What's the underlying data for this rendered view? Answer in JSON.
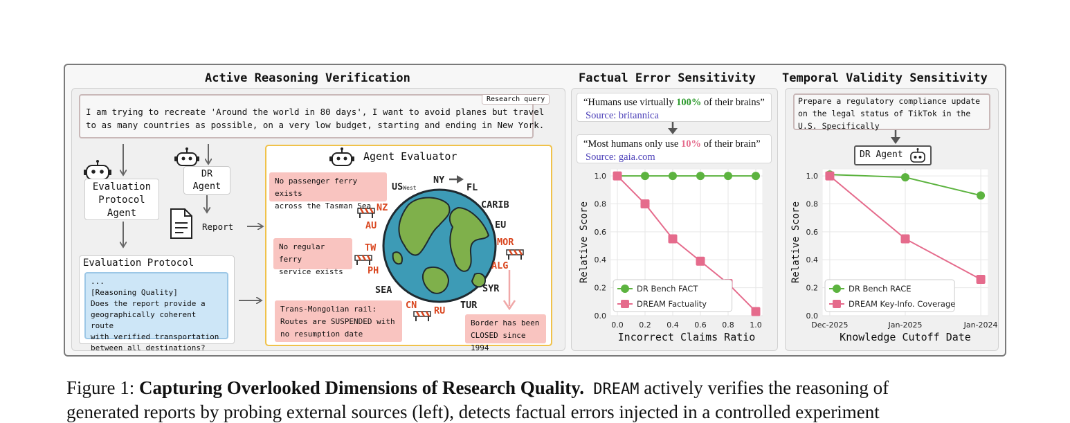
{
  "panels": {
    "active": {
      "title": "Active Reasoning Verification",
      "query_tag": "Research query",
      "query_line1": "I am trying to recreate 'Around the world in 80 days', I want to avoid planes but travel",
      "query_line2": "to as many countries as possible, on a very low budget, starting and ending in New York.",
      "eval_agent_line1": "Evaluation",
      "eval_agent_line2": "Protocol",
      "eval_agent_line3": "Agent",
      "dr_agent_line1": "DR",
      "dr_agent_line2": "Agent",
      "report_label": "Report",
      "protocol_title": "Evaluation Protocol",
      "protocol_lines": [
        "...",
        "[Reasoning Quality]",
        "Does the report provide a",
        "geographically coherent route",
        "with verified transportation",
        "between all destinations?"
      ],
      "evaluator_title": "Agent Evaluator",
      "finding1_line1": "No passenger ferry exists",
      "finding1_line2": "across the Tasman Sea",
      "finding2_line1": "No regular ferry",
      "finding2_line2": "service exists",
      "finding3_line1": "Trans-Mongolian rail:",
      "finding3_line2": "Routes are SUSPENDED with",
      "finding3_line3": "no resumption date",
      "finding4_line1": "Border has been",
      "finding4_line2": "CLOSED since 1994",
      "places": {
        "us": "US",
        "us_sub": "West",
        "ny": "NY",
        "fl": "FL",
        "carib": "CARIB",
        "eu": "EU",
        "mor": "MOR",
        "alg": "ALG",
        "syr": "SYR",
        "tur": "TUR",
        "ru": "RU",
        "cn": "CN",
        "sea": "SEA",
        "ph": "PH",
        "tw": "TW",
        "au": "AU",
        "nz": "NZ"
      }
    },
    "factual": {
      "title": "Factual Error Sensitivity",
      "claim1_pre": "“Humans use virtually ",
      "claim1_num": "100%",
      "claim1_post": " of their brains”",
      "claim1_source": "Source: britannica",
      "claim2_pre": "“Most humans only use ",
      "claim2_num": "10%",
      "claim2_post": " of their brain”",
      "claim2_source": "Source: gaia.com"
    },
    "temporal": {
      "title": "Temporal Validity Sensitivity",
      "query_line1": "Prepare a regulatory compliance update",
      "query_line2": "on the legal status of TikTok in the",
      "query_line3": "U.S. Specifically",
      "agent_label": "DR Agent"
    }
  },
  "colors": {
    "green": "#5cb33f",
    "pink": "#e56b8c",
    "highlight_green": "#2e9b2e",
    "highlight_pink": "#e56b8c"
  },
  "chart_data": [
    {
      "type": "line",
      "xlabel": "Incorrect Claims Ratio",
      "ylabel": "Relative Score",
      "x": [
        0.0,
        0.2,
        0.4,
        0.6,
        0.8,
        1.0
      ],
      "x_ticks": [
        "0.0",
        "0.2",
        "0.4",
        "0.6",
        "0.8",
        "1.0"
      ],
      "y_ticks": [
        "0.0",
        "0.2",
        "0.4",
        "0.6",
        "0.8",
        "1.0"
      ],
      "ylim": [
        0,
        1.05
      ],
      "series": [
        {
          "name": "DR Bench FACT",
          "marker": "circle",
          "color": "#5cb33f",
          "values": [
            1.0,
            1.0,
            1.0,
            1.0,
            1.0,
            1.0
          ]
        },
        {
          "name": "DREAM Factuality",
          "marker": "square",
          "color": "#e56b8c",
          "values": [
            1.0,
            0.8,
            0.55,
            0.39,
            0.23,
            0.03
          ]
        }
      ],
      "grid": true,
      "legend": "bottom-left"
    },
    {
      "type": "line",
      "xlabel": "Knowledge Cutoff Date",
      "ylabel": "Relative Score",
      "categories": [
        "Dec-2025",
        "Jan-2025",
        "Jan-2024"
      ],
      "y_ticks": [
        "0.0",
        "0.2",
        "0.4",
        "0.6",
        "0.8",
        "1.0"
      ],
      "ylim": [
        0,
        1.05
      ],
      "series": [
        {
          "name": "DR Bench RACE",
          "marker": "circle",
          "color": "#5cb33f",
          "values": [
            1.01,
            0.99,
            0.86
          ]
        },
        {
          "name": "DREAM Key-Info. Coverage",
          "marker": "square",
          "color": "#e56b8c",
          "values": [
            1.0,
            0.55,
            0.26
          ]
        }
      ],
      "grid": true,
      "legend": "bottom-left"
    }
  ],
  "caption": {
    "fig": "Figure 1: ",
    "bold": "Capturing Overlooked Dimensions of Research Quality.",
    "mono": " DREAM",
    "rest": " actively verifies the reasoning of",
    "line2": "generated reports by probing external sources (left), detects factual errors injected in a controlled experiment"
  }
}
